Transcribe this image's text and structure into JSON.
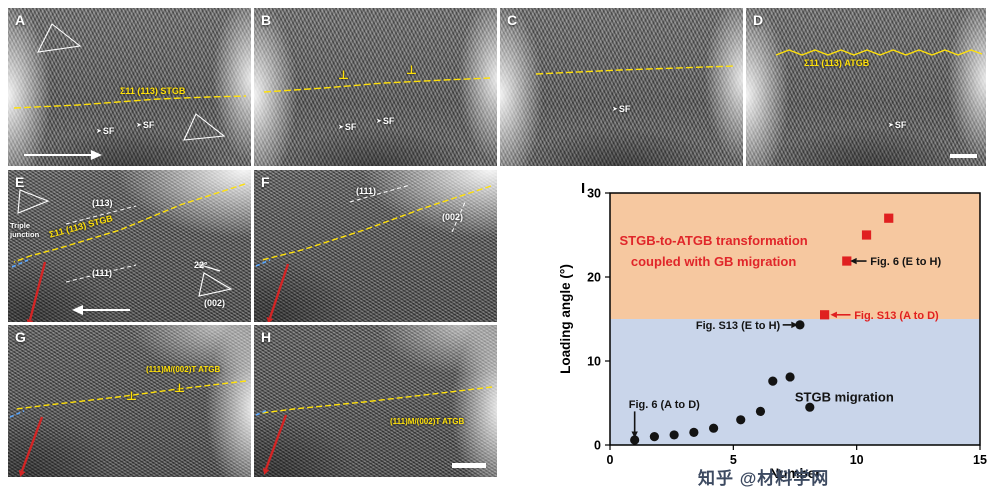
{
  "icons": {
    "sf_arrow": "➤",
    "dislocation": "⊥"
  },
  "panels": {
    "a": {
      "label": "A",
      "gb_label": "Σ11 (113) STGB",
      "sf1": "SF",
      "sf2": "SF"
    },
    "b": {
      "label": "B",
      "sf1": "SF",
      "sf2": "SF"
    },
    "c": {
      "label": "C",
      "sf1": "SF"
    },
    "d": {
      "label": "D",
      "gb_label": "Σ11 (113) ATGB",
      "sf1": "SF"
    },
    "e": {
      "label": "E",
      "triple_junction": "Triple junction",
      "plane_113": "(113)",
      "gb_label": "Σ11 (113) STGB",
      "plane_111": "(111)",
      "angle": "22°",
      "plane_002": "(002)"
    },
    "f": {
      "label": "F",
      "plane_111": "(111)",
      "plane_002": "(002)"
    },
    "g": {
      "label": "G",
      "gb_label": "(111)M/(002)T ATGB"
    },
    "h": {
      "label": "H",
      "gb_label": "(111)M/(002)T ATGB"
    }
  },
  "chart_data": {
    "type": "scatter",
    "panel_label": "I",
    "xlabel": "Number",
    "ylabel": "Loading angle (°)",
    "xlim": [
      0,
      15
    ],
    "ylim": [
      0,
      30
    ],
    "xticks": [
      0,
      5,
      10,
      15
    ],
    "yticks": [
      0,
      10,
      20,
      30
    ],
    "grid": false,
    "regions": [
      {
        "name": "transformation",
        "label_lines": [
          "STGB-to-ATGB transformation",
          "coupled with GB migration"
        ],
        "label_xy": [
          4.2,
          23.8
        ],
        "line_gap": 2.5,
        "fill": "#f6c8a0",
        "text_color": "#e0262a",
        "y_range": [
          15,
          30
        ]
      },
      {
        "name": "migration",
        "label_lines": [
          "STGB migration"
        ],
        "label_xy": [
          9.5,
          5.2
        ],
        "line_gap": 0,
        "fill": "#c9d5ea",
        "text_color": "#141414",
        "y_range": [
          0,
          15
        ]
      }
    ],
    "series": [
      {
        "name": "STGB migration",
        "marker": "circle",
        "color": "#141414",
        "points": [
          [
            1.0,
            0.6
          ],
          [
            1.8,
            1.0
          ],
          [
            2.6,
            1.2
          ],
          [
            3.4,
            1.5
          ],
          [
            4.2,
            2.0
          ],
          [
            5.3,
            3.0
          ],
          [
            6.1,
            4.0
          ],
          [
            6.6,
            7.6
          ],
          [
            7.3,
            8.1
          ],
          [
            8.1,
            4.5
          ],
          [
            7.7,
            14.3
          ]
        ]
      },
      {
        "name": "STGB-to-ATGB transformation coupled with GB migration",
        "marker": "square",
        "color": "#e02020",
        "points": [
          [
            8.7,
            15.5
          ],
          [
            9.6,
            21.9
          ],
          [
            10.4,
            25.0
          ],
          [
            11.3,
            27.0
          ]
        ]
      }
    ],
    "annotations": [
      {
        "text": "Fig. 6 (A to D)",
        "color": "#141414",
        "text_xy": [
          2.2,
          4.9
        ],
        "text_anchor": "middle",
        "arrow_from": [
          1.0,
          4.0
        ],
        "arrow_to": [
          1.0,
          1.6
        ]
      },
      {
        "text": "Fig. S13 (E to H)",
        "color": "#141414",
        "text_xy": [
          6.9,
          14.3
        ],
        "text_anchor": "end",
        "arrow_from": [
          7.0,
          14.3
        ],
        "arrow_to": [
          7.35,
          14.3
        ]
      },
      {
        "text": "Fig. S13 (A to D)",
        "color": "#e02020",
        "text_xy": [
          9.9,
          15.5
        ],
        "text_anchor": "start",
        "arrow_from": [
          9.75,
          15.5
        ],
        "arrow_to": [
          9.2,
          15.5
        ]
      },
      {
        "text": "Fig. 6 (E to H)",
        "color": "#141414",
        "text_xy": [
          10.55,
          21.9
        ],
        "text_anchor": "start",
        "arrow_from": [
          10.4,
          21.9
        ],
        "arrow_to": [
          10.0,
          21.9
        ]
      }
    ]
  },
  "watermark": {
    "text": "知乎 @材料学网"
  }
}
